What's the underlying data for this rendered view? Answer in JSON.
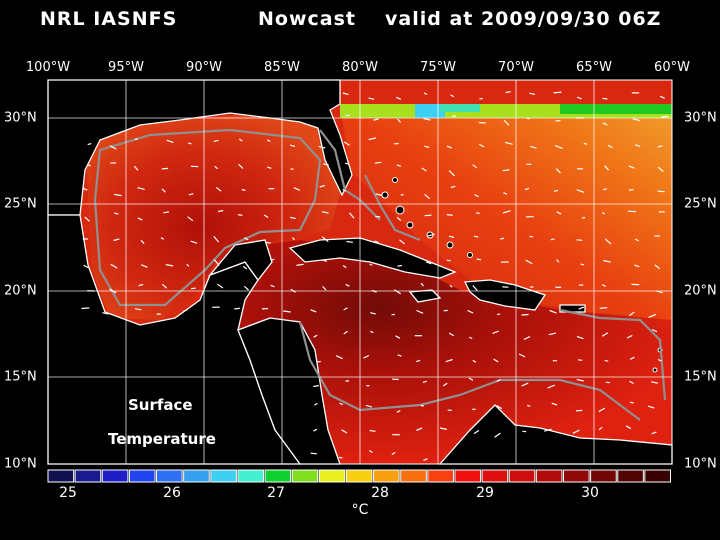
{
  "header": {
    "model": "NRL IASNFS",
    "product": "Nowcast",
    "valid": "valid at 2009/09/30 06Z"
  },
  "longitude_labels": [
    "100°W",
    "95°W",
    "90°W",
    "85°W",
    "80°W",
    "75°W",
    "70°W",
    "65°W",
    "60°W"
  ],
  "latitude_labels": [
    "30°N",
    "25°N",
    "20°N",
    "15°N",
    "10°N"
  ],
  "map_labels": {
    "line1": "Surface",
    "line2": "Temperature"
  },
  "colorbar": {
    "ticks": [
      "25",
      "26",
      "27",
      "28",
      "29",
      "30"
    ],
    "unit": "°C",
    "colors": [
      "#101050",
      "#1a1a90",
      "#1f1fc8",
      "#2244ee",
      "#2f6ff2",
      "#35a0f0",
      "#3ed0f0",
      "#45f0d0",
      "#10d030",
      "#80e020",
      "#e8f020",
      "#f8d010",
      "#f8a010",
      "#f87010",
      "#f84010",
      "#f01010",
      "#e01010",
      "#cc0e0e",
      "#b00a0a",
      "#900808",
      "#700606",
      "#500404",
      "#380202"
    ]
  },
  "colors": {
    "background": "#000000",
    "sea_dark": "#6a0808",
    "sea_mid": "#c82010",
    "sea_warm": "#e84020",
    "sea_orange": "#f08020",
    "contour": "#909090",
    "vector": "#ffffff"
  }
}
